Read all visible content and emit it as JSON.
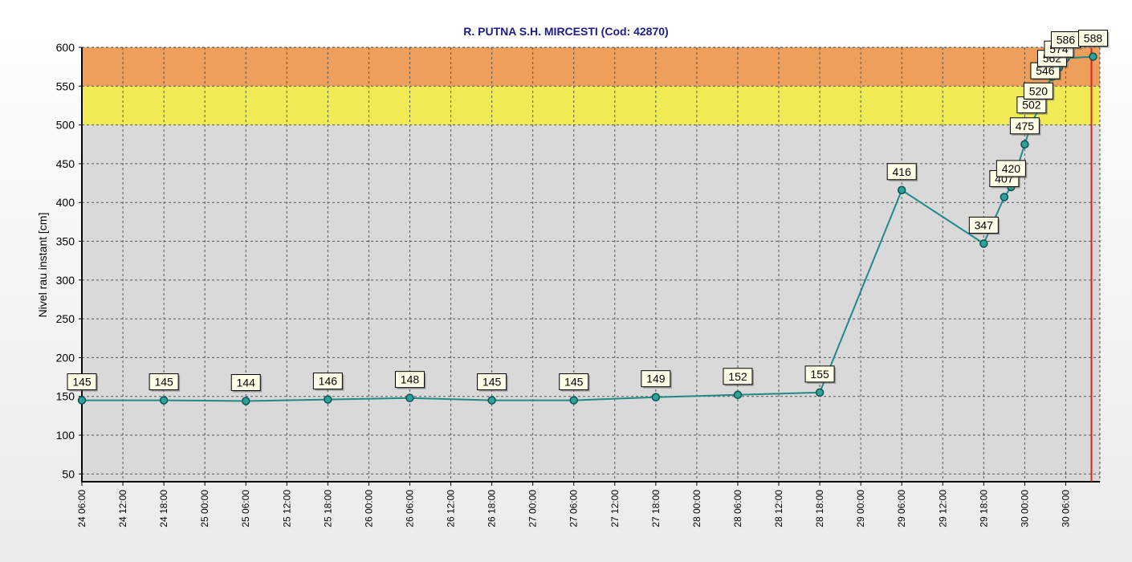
{
  "chart_data": {
    "type": "line",
    "title": "R. PUTNA S.H. MIRCESTI (Cod: 42870)",
    "xlabel": "",
    "ylabel": "Nivel rau instant [cm]",
    "ylim": [
      40,
      600
    ],
    "yticks": [
      50,
      100,
      150,
      200,
      250,
      300,
      350,
      400,
      450,
      500,
      550,
      600
    ],
    "xlim": [
      "24 06:00",
      "30 11:00"
    ],
    "xticks": [
      "24 06:00",
      "24 12:00",
      "24 18:00",
      "25 00:00",
      "25 06:00",
      "25 12:00",
      "25 18:00",
      "26 00:00",
      "26 06:00",
      "26 12:00",
      "26 18:00",
      "27 00:00",
      "27 06:00",
      "27 12:00",
      "27 18:00",
      "28 00:00",
      "28 06:00",
      "28 12:00",
      "28 18:00",
      "29 00:00",
      "29 06:00",
      "29 12:00",
      "29 18:00",
      "30 00:00",
      "30 06:00"
    ],
    "grid": true,
    "bands": [
      {
        "from": 500,
        "to": 550,
        "color": "#f0ea54"
      },
      {
        "from": 550,
        "to": 600,
        "color": "#ee9f5c"
      }
    ],
    "current_time_marker": "30 10:00",
    "colors": {
      "line": "#1f8a8a",
      "marker_fill": "#2aa39a",
      "marker_stroke": "#0e4f4f",
      "title": "#1c1c8a",
      "plot_bg": "#d9d9d9",
      "marker_line": "#e02020"
    },
    "series": [
      {
        "values": [
          {
            "x": "24 06:00",
            "y": 145
          },
          {
            "x": "24 18:00",
            "y": 145
          },
          {
            "x": "25 06:00",
            "y": 144
          },
          {
            "x": "25 18:00",
            "y": 146
          },
          {
            "x": "26 06:00",
            "y": 148
          },
          {
            "x": "26 18:00",
            "y": 145
          },
          {
            "x": "27 06:00",
            "y": 145
          },
          {
            "x": "27 18:00",
            "y": 149
          },
          {
            "x": "28 06:00",
            "y": 152
          },
          {
            "x": "28 18:00",
            "y": 155
          },
          {
            "x": "29 06:00",
            "y": 416
          },
          {
            "x": "29 18:00",
            "y": 347
          },
          {
            "x": "29 21:00",
            "y": 407
          },
          {
            "x": "29 22:00",
            "y": 420
          },
          {
            "x": "30 00:00",
            "y": 475
          },
          {
            "x": "30 01:00",
            "y": 502
          },
          {
            "x": "30 02:00",
            "y": 520
          },
          {
            "x": "30 03:00",
            "y": 546
          },
          {
            "x": "30 04:00",
            "y": 562
          },
          {
            "x": "30 05:00",
            "y": 574
          },
          {
            "x": "30 06:00",
            "y": 586
          },
          {
            "x": "30 10:00",
            "y": 588
          }
        ]
      }
    ]
  }
}
